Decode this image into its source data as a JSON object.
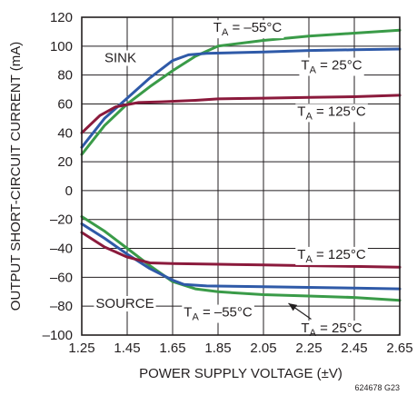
{
  "chart_data": {
    "type": "line",
    "xlabel": "POWER SUPPLY VOLTAGE (±V)",
    "ylabel": "OUTPUT SHORT-CIRCUIT CURRENT (mA)",
    "xlim": [
      1.25,
      2.65
    ],
    "ylim": [
      -100,
      120
    ],
    "x_ticks": [
      "1.25",
      "1.45",
      "1.65",
      "1.85",
      "2.05",
      "2.25",
      "2.45",
      "2.65"
    ],
    "y_ticks": [
      "120",
      "100",
      "80",
      "60",
      "40",
      "20",
      "0",
      "–20",
      "–40",
      "–60",
      "–80",
      "–100"
    ],
    "grid": true,
    "figure_id": "624678 G23",
    "series": [
      {
        "color": "#3a9b48",
        "x": [
          1.25,
          1.35,
          1.45,
          1.55,
          1.65,
          1.75,
          1.85,
          2.05,
          2.25,
          2.45,
          2.65
        ],
        "y": [
          25,
          45,
          60,
          72,
          83,
          93,
          100,
          104,
          107,
          109,
          111
        ]
      },
      {
        "color": "#2f5aa8",
        "x": [
          1.25,
          1.35,
          1.45,
          1.55,
          1.65,
          1.72,
          1.8,
          2.05,
          2.25,
          2.45,
          2.65
        ],
        "y": [
          30,
          50,
          64,
          78,
          90,
          94,
          95,
          96,
          97,
          97.5,
          98
        ]
      },
      {
        "color": "#8b1a3c",
        "x": [
          1.25,
          1.33,
          1.4,
          1.5,
          1.6,
          1.75,
          1.85,
          2.05,
          2.25,
          2.45,
          2.65
        ],
        "y": [
          40,
          52,
          58,
          61,
          61.5,
          62.5,
          63.5,
          64,
          64.5,
          65,
          66
        ]
      },
      {
        "color": "#3a9b48",
        "x": [
          1.25,
          1.35,
          1.45,
          1.55,
          1.65,
          1.75,
          1.85,
          2.05,
          2.25,
          2.45,
          2.65
        ],
        "y": [
          -18,
          -28,
          -40,
          -52,
          -63,
          -68,
          -70,
          -72,
          -73,
          -74,
          -76
        ]
      },
      {
        "color": "#2f5aa8",
        "x": [
          1.25,
          1.35,
          1.45,
          1.55,
          1.65,
          1.7,
          1.8,
          2.05,
          2.25,
          2.45,
          2.65
        ],
        "y": [
          -23,
          -33,
          -44,
          -54,
          -62,
          -65,
          -66,
          -66.5,
          -67,
          -67.5,
          -68
        ]
      },
      {
        "color": "#8b1a3c",
        "x": [
          1.25,
          1.35,
          1.45,
          1.55,
          1.65,
          1.85,
          2.05,
          2.25,
          2.45,
          2.65
        ],
        "y": [
          -29,
          -39,
          -46,
          -50,
          -50.5,
          -51,
          -51.5,
          -52,
          -52.5,
          -53
        ]
      }
    ],
    "annotations": [
      {
        "id": "sink",
        "text": "SINK",
        "x": 1.42,
        "y": 92
      },
      {
        "id": "source",
        "text": "SOURCE",
        "x": 1.44,
        "y": -78
      },
      {
        "id": "ta-m55-sink",
        "prefix": "T",
        "sub": "A",
        "suffix": " = –55°C",
        "x": 1.98,
        "y": 113
      },
      {
        "id": "ta-25-sink",
        "prefix": "T",
        "sub": "A",
        "suffix": " = 25°C",
        "x": 2.35,
        "y": 87
      },
      {
        "id": "ta-125-sink",
        "prefix": "T",
        "sub": "A",
        "suffix": " = 125°C",
        "x": 2.35,
        "y": 55
      },
      {
        "id": "ta-125-source",
        "prefix": "T",
        "sub": "A",
        "suffix": " = 125°C",
        "x": 2.35,
        "y": -44
      },
      {
        "id": "ta-m55-source",
        "prefix": "T",
        "sub": "A",
        "suffix": " = –55°C",
        "x": 1.85,
        "y": -84
      },
      {
        "id": "ta-25-source",
        "prefix": "T",
        "sub": "A",
        "suffix": " = 25°C",
        "x": 2.35,
        "y": -95
      }
    ]
  }
}
